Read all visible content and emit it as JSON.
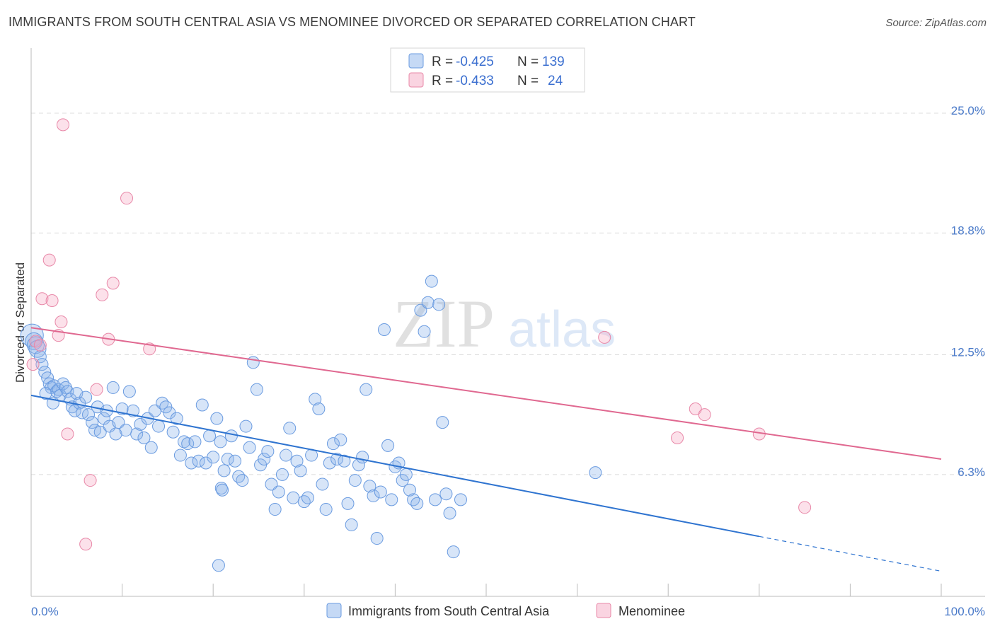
{
  "title": "IMMIGRANTS FROM SOUTH CENTRAL ASIA VS MENOMINEE DIVORCED OR SEPARATED CORRELATION CHART",
  "source": "Source: ZipAtlas.com",
  "watermark": {
    "zip": "ZIP",
    "atlas": "atlas"
  },
  "legend": {
    "series1": {
      "r_label": "R =",
      "r_value": "-0.425",
      "n_label": "N =",
      "n_value": "139"
    },
    "series2": {
      "r_label": "R =",
      "r_value": "-0.433",
      "n_label": "N =",
      "n_value": "24"
    }
  },
  "colors": {
    "blue": "#6a9be0",
    "blue_fill": "rgba(140,180,235,0.35)",
    "blue_line": "#2f74d0",
    "pink": "#e888a8",
    "pink_fill": "rgba(245,170,195,0.35)",
    "pink_line": "#e06890",
    "grid": "#dcdcdc",
    "label": "#4a7ac9"
  },
  "chart_data": {
    "type": "scatter",
    "title": "IMMIGRANTS FROM SOUTH CENTRAL ASIA VS MENOMINEE DIVORCED OR SEPARATED CORRELATION CHART",
    "xlabel": "",
    "ylabel": "Divorced or Separated",
    "xlim": [
      0,
      100
    ],
    "ylim": [
      0,
      28
    ],
    "x_tick_labels": [
      "0.0%",
      "100.0%"
    ],
    "y_ticks": [
      6.3,
      12.5,
      18.8,
      25.0
    ],
    "y_tick_labels": [
      "6.3%",
      "12.5%",
      "18.8%",
      "25.0%"
    ],
    "grid": true,
    "legend_position": "top-center",
    "series": [
      {
        "name": "Immigrants from South Central Asia",
        "R": -0.425,
        "N": 139,
        "trend": {
          "x0": 0,
          "y0": 10.4,
          "x1": 80,
          "y1": 3.1,
          "dashed_to_x": 100,
          "dashed_to_y": 1.3
        },
        "points": [
          [
            0.1,
            13.5
          ],
          [
            0.3,
            13.2
          ],
          [
            0.5,
            13.0
          ],
          [
            0.7,
            12.8
          ],
          [
            1.0,
            12.4
          ],
          [
            1.2,
            12.0
          ],
          [
            1.5,
            11.6
          ],
          [
            1.8,
            11.3
          ],
          [
            2.0,
            11.0
          ],
          [
            2.2,
            10.8
          ],
          [
            2.5,
            10.9
          ],
          [
            2.8,
            10.6
          ],
          [
            3.0,
            10.7
          ],
          [
            3.2,
            10.4
          ],
          [
            3.5,
            11.0
          ],
          [
            1.6,
            10.5
          ],
          [
            2.4,
            10.0
          ],
          [
            3.8,
            10.8
          ],
          [
            4.0,
            10.6
          ],
          [
            4.3,
            10.2
          ],
          [
            4.5,
            9.8
          ],
          [
            4.8,
            9.6
          ],
          [
            5.0,
            10.5
          ],
          [
            5.3,
            10.0
          ],
          [
            5.6,
            9.5
          ],
          [
            6.0,
            10.3
          ],
          [
            6.3,
            9.4
          ],
          [
            6.7,
            9.0
          ],
          [
            7.0,
            8.6
          ],
          [
            7.3,
            9.8
          ],
          [
            7.6,
            8.5
          ],
          [
            8.0,
            9.2
          ],
          [
            8.3,
            9.6
          ],
          [
            8.6,
            8.8
          ],
          [
            9.0,
            10.8
          ],
          [
            9.3,
            8.4
          ],
          [
            9.6,
            9.0
          ],
          [
            10.0,
            9.7
          ],
          [
            10.4,
            8.6
          ],
          [
            10.8,
            10.6
          ],
          [
            11.2,
            9.6
          ],
          [
            11.6,
            8.4
          ],
          [
            12.0,
            8.9
          ],
          [
            12.4,
            8.2
          ],
          [
            12.8,
            9.2
          ],
          [
            13.2,
            7.7
          ],
          [
            13.6,
            9.6
          ],
          [
            14.0,
            8.8
          ],
          [
            14.4,
            10.0
          ],
          [
            14.8,
            9.8
          ],
          [
            15.2,
            9.5
          ],
          [
            15.6,
            8.5
          ],
          [
            16.0,
            9.2
          ],
          [
            16.4,
            7.3
          ],
          [
            16.8,
            8.0
          ],
          [
            17.2,
            7.9
          ],
          [
            17.6,
            6.9
          ],
          [
            18.0,
            8.0
          ],
          [
            18.4,
            7.0
          ],
          [
            18.8,
            9.9
          ],
          [
            19.2,
            6.9
          ],
          [
            19.6,
            8.3
          ],
          [
            20.0,
            7.2
          ],
          [
            20.4,
            9.2
          ],
          [
            20.8,
            8.0
          ],
          [
            21.2,
            6.5
          ],
          [
            21.6,
            7.1
          ],
          [
            22.0,
            8.3
          ],
          [
            22.4,
            7.0
          ],
          [
            22.8,
            6.2
          ],
          [
            23.2,
            6.0
          ],
          [
            23.6,
            8.8
          ],
          [
            24.0,
            7.7
          ],
          [
            24.4,
            12.1
          ],
          [
            24.8,
            10.7
          ],
          [
            25.2,
            6.8
          ],
          [
            25.6,
            7.1
          ],
          [
            26.0,
            7.5
          ],
          [
            26.4,
            5.8
          ],
          [
            26.8,
            4.5
          ],
          [
            27.2,
            5.4
          ],
          [
            27.6,
            6.3
          ],
          [
            28.0,
            7.3
          ],
          [
            28.4,
            8.7
          ],
          [
            28.8,
            5.1
          ],
          [
            29.2,
            7.0
          ],
          [
            29.6,
            6.5
          ],
          [
            30.0,
            4.9
          ],
          [
            30.4,
            5.1
          ],
          [
            30.8,
            7.3
          ],
          [
            31.2,
            10.2
          ],
          [
            31.6,
            9.7
          ],
          [
            32.0,
            5.8
          ],
          [
            32.4,
            4.5
          ],
          [
            32.8,
            6.9
          ],
          [
            33.2,
            7.9
          ],
          [
            33.6,
            7.1
          ],
          [
            34.0,
            8.1
          ],
          [
            34.4,
            7.0
          ],
          [
            34.8,
            4.8
          ],
          [
            35.2,
            3.7
          ],
          [
            35.6,
            6.0
          ],
          [
            36.0,
            6.8
          ],
          [
            36.4,
            7.2
          ],
          [
            36.8,
            10.7
          ],
          [
            37.2,
            5.7
          ],
          [
            37.6,
            5.2
          ],
          [
            38.0,
            3.0
          ],
          [
            38.4,
            5.4
          ],
          [
            38.8,
            13.8
          ],
          [
            39.2,
            7.8
          ],
          [
            39.6,
            5.0
          ],
          [
            40.0,
            6.7
          ],
          [
            40.4,
            6.9
          ],
          [
            40.8,
            6.0
          ],
          [
            41.2,
            6.3
          ],
          [
            41.6,
            5.5
          ],
          [
            42.0,
            5.0
          ],
          [
            42.4,
            4.8
          ],
          [
            42.8,
            14.8
          ],
          [
            43.2,
            13.7
          ],
          [
            43.6,
            15.2
          ],
          [
            44.0,
            16.3
          ],
          [
            44.4,
            5.0
          ],
          [
            44.8,
            15.1
          ],
          [
            45.2,
            9.0
          ],
          [
            45.6,
            5.3
          ],
          [
            46.0,
            4.3
          ],
          [
            46.4,
            2.3
          ],
          [
            47.2,
            5.0
          ],
          [
            62.0,
            6.4
          ],
          [
            20.9,
            5.6
          ],
          [
            20.6,
            1.6
          ],
          [
            21.0,
            5.5
          ]
        ]
      },
      {
        "name": "Menominee",
        "R": -0.433,
        "N": 24,
        "trend": {
          "x0": 0,
          "y0": 13.9,
          "x1": 100,
          "y1": 7.1
        },
        "points": [
          [
            0.2,
            12.0
          ],
          [
            0.5,
            13.2
          ],
          [
            1.0,
            13.0
          ],
          [
            1.2,
            15.4
          ],
          [
            2.0,
            17.4
          ],
          [
            2.3,
            15.3
          ],
          [
            3.0,
            13.5
          ],
          [
            3.3,
            14.2
          ],
          [
            3.5,
            24.4
          ],
          [
            4.0,
            8.4
          ],
          [
            6.5,
            6.0
          ],
          [
            6.0,
            2.7
          ],
          [
            7.2,
            10.7
          ],
          [
            7.8,
            15.6
          ],
          [
            8.5,
            13.3
          ],
          [
            9.0,
            16.2
          ],
          [
            10.5,
            20.6
          ],
          [
            13.0,
            12.8
          ],
          [
            63.0,
            13.4
          ],
          [
            71.0,
            8.2
          ],
          [
            73.0,
            9.7
          ],
          [
            74.0,
            9.4
          ],
          [
            80.0,
            8.4
          ],
          [
            85.0,
            4.6
          ]
        ]
      }
    ]
  },
  "bottom_legend": {
    "series1": "Immigrants from South Central Asia",
    "series2": "Menominee"
  }
}
